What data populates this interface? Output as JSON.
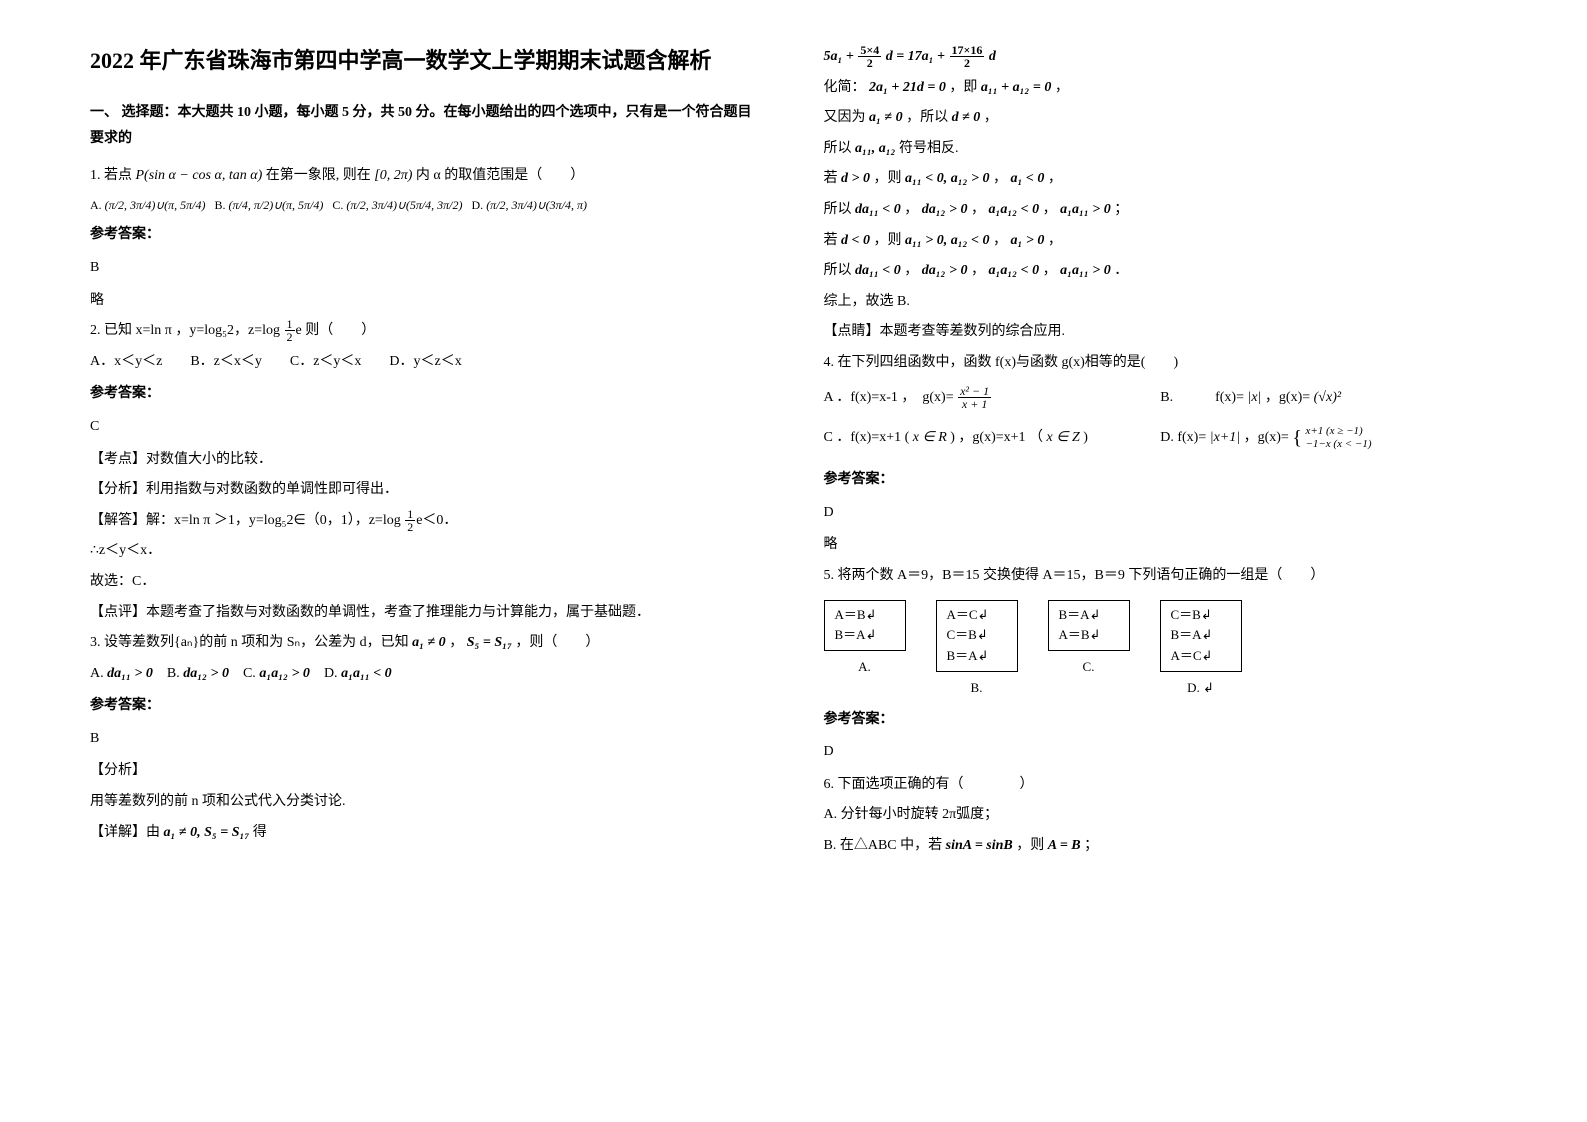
{
  "title": "2022 年广东省珠海市第四中学高一数学文上学期期末试题含解析",
  "section1": "一、 选择题：本大题共 10 小题，每小题 5 分，共 50 分。在每小题给出的四个选项中，只有是一个符合题目要求的",
  "q1": {
    "stem_pre": "1. 若点",
    "stem_p": "P(sin α − cos α, tan α)",
    "stem_mid": "在第一象限, 则在",
    "stem_int": "[0, 2π)",
    "stem_post": "内 α 的取值范围是（　　）",
    "optA_label": "A.",
    "optA": "(π/2, 3π/4)∪(π, 5π/4)",
    "optB_label": "B.",
    "optB": "(π/4, π/2)∪(π, 5π/4)",
    "optC_label": "C.",
    "optC": "(π/2, 3π/4)∪(5π/4, 3π/2)",
    "optD_label": "D.",
    "optD": "(π/2, 3π/4)∪(3π/4, π)",
    "ans_label": "参考答案：",
    "ans": "B",
    "note": "略"
  },
  "q2": {
    "stem": "2. 已知 x=ln π ，y=log₅2，z=log ",
    "stem_tail": "e 则（　　）",
    "opts": "A．x＜y＜z　　B．z＜x＜y　　C．z＜y＜x　　D．y＜z＜x",
    "ans_label": "参考答案：",
    "ans": "C",
    "p1": "【考点】对数值大小的比较．",
    "p2": "【分析】利用指数与对数函数的单调性即可得出．",
    "p3_pre": "【解答】解：x=ln π ＞1，y=log₅2∈（0，1），z=log ",
    "p3_post": "e＜0．",
    "p4": "∴z＜y＜x．",
    "p5": "故选：C．",
    "p6": "【点评】本题考查了指数与对数函数的单调性，考查了推理能力与计算能力，属于基础题．"
  },
  "q3": {
    "stem_pre": "3. 设等差数列{aₙ}的前 n 项和为 Sₙ，公差为 d，已知",
    "cond1": "a₁ ≠ 0",
    "cond_sep": "，",
    "cond2": "S₅ = S₁₇",
    "stem_post": "，则（　　）",
    "optA_label": "A.",
    "optA": "da₁₁ > 0",
    "optB_label": "B.",
    "optB": "da₁₂ > 0",
    "optC_label": "C.",
    "optC": "a₁a₁₂ > 0",
    "optD_label": "D.",
    "optD": "a₁a₁₁ < 0",
    "ans_label": "参考答案：",
    "ans": "B",
    "fx": "【分析】",
    "fx_body": "用等差数列的前 n 项和公式代入分类讨论.",
    "detail_pre": "【详解】由",
    "detail_c1": "a₁ ≠ 0, S₅ = S₁₇",
    "detail_post": "得"
  },
  "r_top": {
    "l1_pre": "5a₁ +",
    "l1_f1n": "5×4",
    "l1_f1d": "2",
    "l1_mid": "d = 17a₁ +",
    "l1_f2n": "17×16",
    "l1_f2d": "2",
    "l1_post": "d",
    "l2_pre": "化简：",
    "l2_eq1": "2a₁ + 21d = 0",
    "l2_mid": "，即",
    "l2_eq2": "a₁₁ + a₁₂ = 0",
    "l2_post": "，",
    "l3_pre": "又因为",
    "l3_c": "a₁ ≠ 0",
    "l3_mid": "，所以",
    "l3_c2": "d ≠ 0",
    "l3_post": "，",
    "l4_pre": "所以",
    "l4_c": "a₁₁, a₁₂",
    "l4_post": "符号相反.",
    "l5_pre": "若",
    "l5_c1": "d > 0",
    "l5_mid1": "，则",
    "l5_c2": "a₁₁ < 0, a₁₂ > 0",
    "l5_mid2": "，",
    "l5_c3": "a₁ < 0",
    "l5_post": "，",
    "l6_pre": "所以",
    "l6_c1": "da₁₁ < 0",
    "l6_s1": "，",
    "l6_c2": "da₁₂ > 0",
    "l6_s2": "，",
    "l6_c3": "a₁a₁₂ < 0",
    "l6_s3": "，",
    "l6_c4": "a₁a₁₁ > 0",
    "l6_post": "；",
    "l7_pre": "若",
    "l7_c1": "d < 0",
    "l7_mid1": "，则",
    "l7_c2": "a₁₁ > 0, a₁₂ < 0",
    "l7_mid2": "，",
    "l7_c3": "a₁ > 0",
    "l7_post": "，",
    "l8_pre": "所以",
    "l8_c1": "da₁₁ < 0",
    "l8_s1": "，",
    "l8_c2": "da₁₂ > 0",
    "l8_s2": "，",
    "l8_c3": "a₁a₁₂ < 0",
    "l8_s3": "，",
    "l8_c4": "a₁a₁₁ > 0",
    "l8_post": "．",
    "l9": "综上，故选 B.",
    "l10": "【点睛】本题考查等差数列的综合应用."
  },
  "q4": {
    "stem": "4. 在下列四组函数中，函数 f(x)与函数 g(x)相等的是(　　)",
    "A_pre": "A ．f(x)=x-1 ，　g(x)=",
    "A_fn": "x² − 1",
    "A_fd": "x + 1",
    "B_pre": "B.　　　f(x)=",
    "B_c1": "|x|",
    "B_mid": "，g(x)=",
    "B_c2": "(√x)²",
    "C_pre": "C ．f(x)=x+1 (",
    "C_c1": "x ∈ R",
    "C_mid": ") ，g(x)=x+1 （",
    "C_c2": "x ∈ Z",
    "C_post": ")",
    "D_pre": "D. f(x)=",
    "D_c1": "|x+1|",
    "D_mid": "，g(x)=",
    "D_c2a": "x+1 (x ≥ −1)",
    "D_c2b": "−1−x (x < −1)",
    "ans_label": "参考答案：",
    "ans": "D",
    "note": "略"
  },
  "q5": {
    "stem": "5. 将两个数 A＝9，B＝15 交换使得 A＝15，B＝9 下列语句正确的一组是（　　）",
    "boxA_l1": "A＝B↲",
    "boxA_l2": "B＝A↲",
    "boxB_l1": "A＝C↲",
    "boxB_l2": "C＝B↲",
    "boxB_l3": "B＝A↲",
    "boxC_l1": "B＝A↲",
    "boxC_l2": "A＝B↲",
    "boxD_l1": "C＝B↲",
    "boxD_l2": "B＝A↲",
    "boxD_l3": "A＝C↲",
    "labA": "A.",
    "labB": "B.",
    "labC": "C.",
    "labD": "D. ↲",
    "ans_label": "参考答案：",
    "ans": "D"
  },
  "q6": {
    "stem": "6. 下面选项正确的有（　　　　）",
    "optA": "A. 分针每小时旋转 2π弧度；",
    "optB_pre": "B. 在△ABC 中，若",
    "optB_c": "sinA = sinB",
    "optB_mid": "，则",
    "optB_c2": "A = B",
    "optB_post": "；"
  }
}
